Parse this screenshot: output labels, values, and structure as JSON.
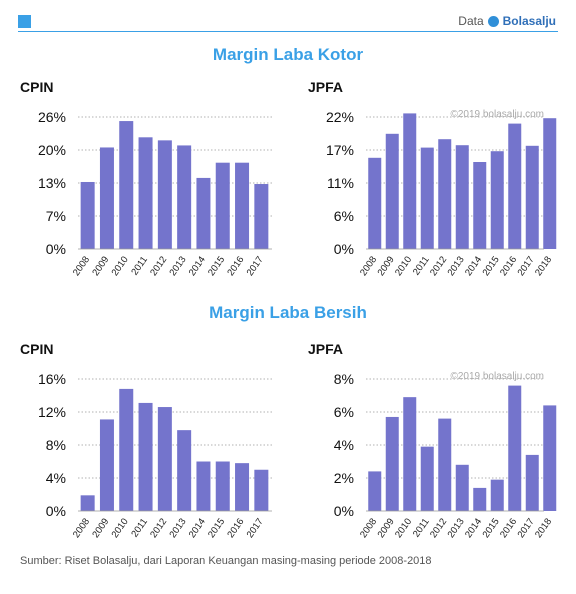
{
  "header": {
    "label": "Data",
    "brand": "Bolasalju"
  },
  "sections": [
    {
      "title": "Margin Laba Kotor"
    },
    {
      "title": "Margin Laba Bersih"
    }
  ],
  "footer": "Sumber: Riset Bolasalju, dari Laporan Keuangan masing-masing periode 2008-2018",
  "colors": {
    "bar": "#7474cc",
    "accent": "#3aa0e6",
    "grid": "#999999"
  },
  "chart_data": [
    {
      "type": "bar",
      "title": "CPIN",
      "section": "Margin Laba Kotor",
      "categories": [
        "2008",
        "2009",
        "2010",
        "2011",
        "2012",
        "2013",
        "2014",
        "2015",
        "2016",
        "2017"
      ],
      "values": [
        13.2,
        20.0,
        25.2,
        22.0,
        21.4,
        20.4,
        14.0,
        17.0,
        17.0,
        12.8
      ],
      "ylim": [
        0,
        26
      ],
      "yticks": [
        "0%",
        "7%",
        "13%",
        "20%",
        "26%"
      ],
      "grid": true,
      "watermark": ""
    },
    {
      "type": "bar",
      "title": "JPFA",
      "section": "Margin Laba Kotor",
      "categories": [
        "2008",
        "2009",
        "2010",
        "2011",
        "2012",
        "2013",
        "2014",
        "2015",
        "2016",
        "2017",
        "2018"
      ],
      "values": [
        15.2,
        19.2,
        22.6,
        16.9,
        18.3,
        17.3,
        14.5,
        16.3,
        20.9,
        17.2,
        21.8
      ],
      "ylim": [
        0,
        22
      ],
      "yticks": [
        "0%",
        "6%",
        "11%",
        "17%",
        "22%"
      ],
      "grid": true,
      "watermark": "©2019 bolasalju.com"
    },
    {
      "type": "bar",
      "title": "CPIN",
      "section": "Margin Laba Bersih",
      "categories": [
        "2008",
        "2009",
        "2010",
        "2011",
        "2012",
        "2013",
        "2014",
        "2015",
        "2016",
        "2017"
      ],
      "values": [
        1.9,
        11.1,
        14.8,
        13.1,
        12.6,
        9.8,
        6.0,
        6.0,
        5.8,
        5.0
      ],
      "ylim": [
        0,
        16
      ],
      "yticks": [
        "0%",
        "4%",
        "8%",
        "12%",
        "16%"
      ],
      "grid": true,
      "watermark": ""
    },
    {
      "type": "bar",
      "title": "JPFA",
      "section": "Margin Laba Bersih",
      "categories": [
        "2008",
        "2009",
        "2010",
        "2011",
        "2012",
        "2013",
        "2014",
        "2015",
        "2016",
        "2017",
        "2018"
      ],
      "values": [
        2.4,
        5.7,
        6.9,
        3.9,
        5.6,
        2.8,
        1.4,
        1.9,
        7.6,
        3.4,
        6.4
      ],
      "ylim": [
        0,
        8
      ],
      "yticks": [
        "0%",
        "2%",
        "4%",
        "6%",
        "8%"
      ],
      "grid": true,
      "watermark": "©2019 bolasalju.com"
    }
  ]
}
